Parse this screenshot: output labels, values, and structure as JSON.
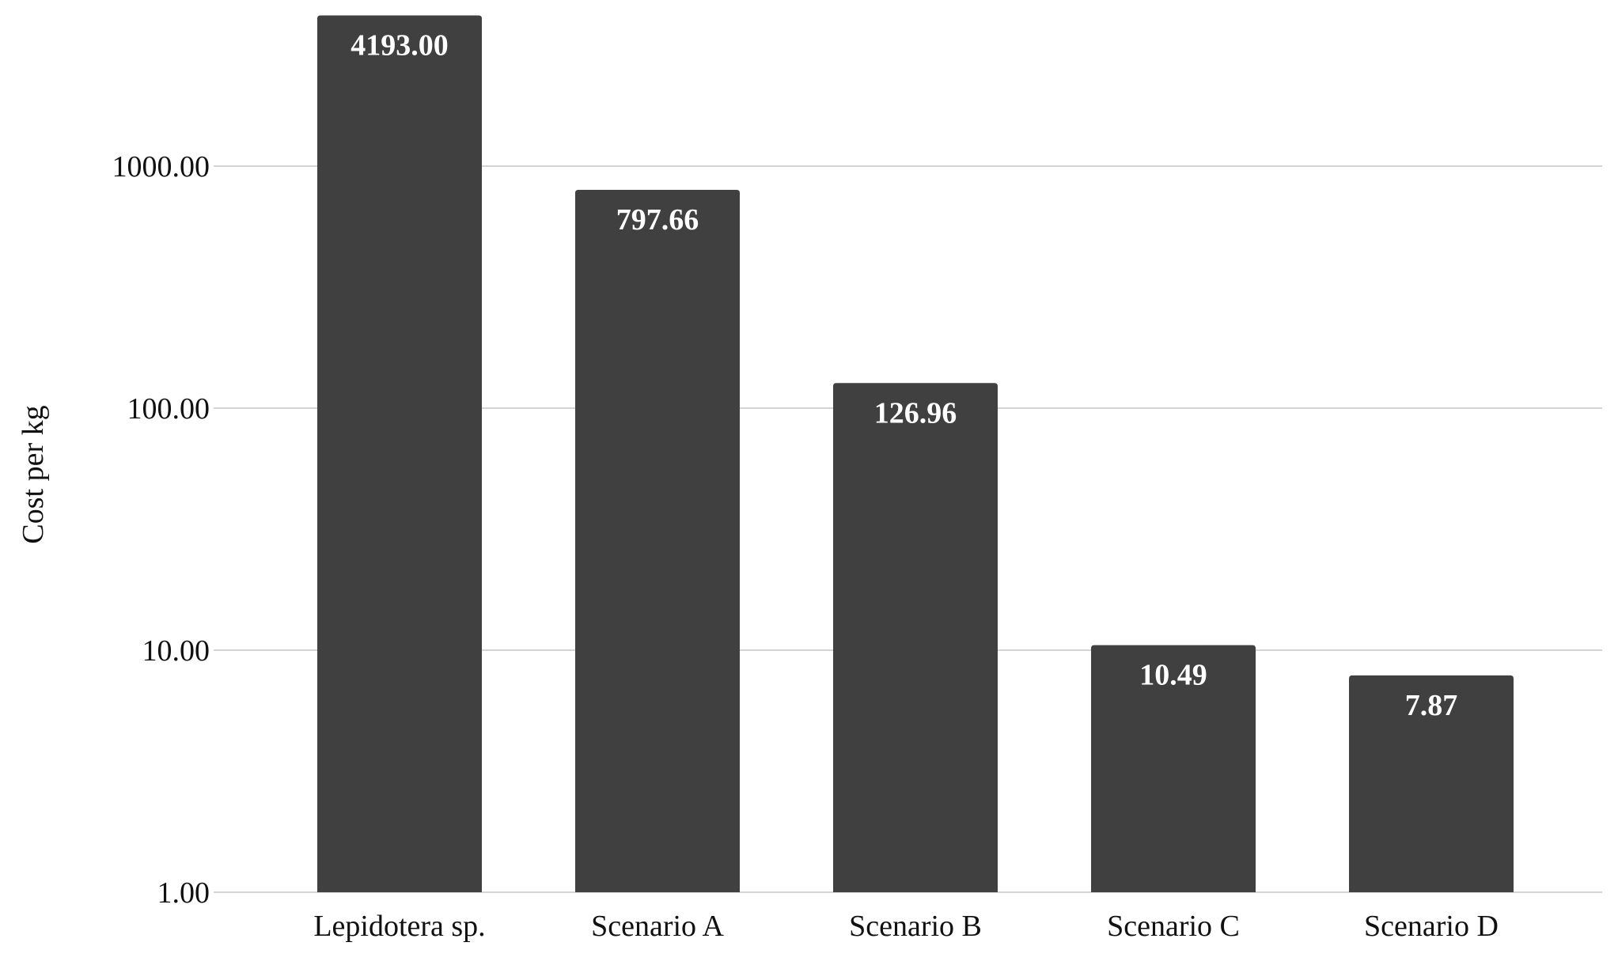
{
  "colors": {
    "bar": "#404040",
    "grid": "#d4d4d4",
    "text": "#111111",
    "data_label": "#ffffff"
  },
  "chart_data": {
    "type": "bar",
    "title": "",
    "xlabel": "",
    "ylabel": "Cost per kg",
    "y_scale": "log",
    "ylim": [
      1,
      5000
    ],
    "y_ticks": [
      {
        "value": 1,
        "label": "1.00"
      },
      {
        "value": 10,
        "label": "10.00"
      },
      {
        "value": 100,
        "label": "100.00"
      },
      {
        "value": 1000,
        "label": "1000.00"
      }
    ],
    "grid": true,
    "legend": "none",
    "categories": [
      "Lepidotera sp.",
      "Scenario A",
      "Scenario B",
      "Scenario C",
      "Scenario D"
    ],
    "values": [
      4193.0,
      797.66,
      126.96,
      10.49,
      7.87
    ],
    "data_labels": [
      "4193.00",
      "797.66",
      "126.96",
      "10.49",
      "7.87"
    ]
  }
}
